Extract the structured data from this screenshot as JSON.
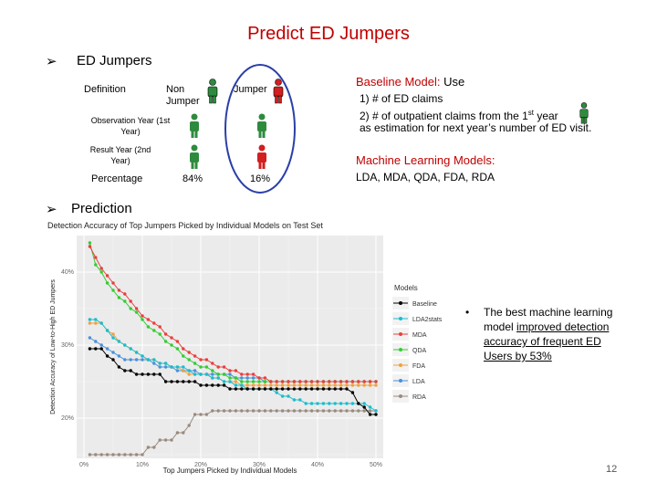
{
  "slide": {
    "title": "Predict ED Jumpers",
    "page_number": "12"
  },
  "ed_section": {
    "heading": "ED Jumpers",
    "table": {
      "row_definition": "Definition",
      "col_non_jumper": "Non Jumper",
      "col_jumper": "Jumper",
      "row_observation": "Observation Year (1st Year)",
      "row_result": "Result Year (2nd Year)",
      "row_percentage": "Percentage",
      "pct_non_jumper": "84%",
      "pct_jumper": "16%"
    }
  },
  "baseline": {
    "label": "Baseline Model:",
    "use": "Use",
    "item1": "1) # of ED claims",
    "item2_pre": "2) # of outpatient claims from the 1",
    "item2_sup": "st",
    "item2_post": " year",
    "item3": "as estimation for next year’s number of ED visit."
  },
  "ml": {
    "label": "Machine Learning Models:",
    "list": "LDA, MDA, QDA, FDA, RDA"
  },
  "prediction": {
    "heading": "Prediction"
  },
  "callout": {
    "text1": "The best machine learning model ",
    "text2": "improved detection accuracy of frequent ED Users by 53%"
  },
  "colors": {
    "accent_red": "#c00000",
    "person_green": "#2e8b3e",
    "person_red": "#d21f1f",
    "circle_blue": "#2b3fa8"
  },
  "chart_data": {
    "type": "line",
    "title": "Detection Accuracy of Top Jumpers Picked by Individual Models on Test Set",
    "xlabel": "Top Jumpers Picked by Individual Models",
    "ylabel": "Detection Accuracy of Low-to-High ED Jumpers",
    "x_ticks": [
      "0%",
      "10%",
      "20%",
      "30%",
      "40%",
      "50%"
    ],
    "y_ticks": [
      "20%",
      "30%",
      "40%"
    ],
    "xlim": [
      0,
      50
    ],
    "ylim": [
      14.5,
      45
    ],
    "legend_title": "Models",
    "legend_position": "right",
    "x": [
      1,
      2,
      3,
      4,
      5,
      6,
      7,
      8,
      9,
      10,
      11,
      12,
      13,
      14,
      15,
      16,
      17,
      18,
      19,
      20,
      21,
      22,
      23,
      24,
      25,
      26,
      27,
      28,
      29,
      30,
      31,
      32,
      33,
      34,
      35,
      36,
      37,
      38,
      39,
      40,
      41,
      42,
      43,
      44,
      45,
      46,
      47,
      48,
      49,
      50
    ],
    "series": [
      {
        "name": "Baseline",
        "color": "#000000",
        "values": [
          29.5,
          29.5,
          29.5,
          28.5,
          28,
          27,
          26.5,
          26.5,
          26,
          26,
          26,
          26,
          26,
          25,
          25,
          25,
          25,
          25,
          25,
          24.5,
          24.5,
          24.5,
          24.5,
          24.5,
          24,
          24,
          24,
          24,
          24,
          24,
          24,
          24,
          24,
          24,
          24,
          24,
          24,
          24,
          24,
          24,
          24,
          24,
          24,
          24,
          24,
          23.5,
          22,
          21.5,
          20.5,
          20.5
        ]
      },
      {
        "name": "LDA2stats",
        "color": "#17becf",
        "values": [
          33.5,
          33.5,
          33,
          32,
          31,
          30.5,
          30,
          29.5,
          29,
          28.5,
          28,
          28,
          27.5,
          27.5,
          27,
          27,
          27,
          26.5,
          26,
          26,
          26,
          25.5,
          25.5,
          25,
          25,
          24.5,
          24.5,
          24,
          24,
          24,
          24,
          24,
          23.5,
          23,
          23,
          22.5,
          22.5,
          22,
          22,
          22,
          22,
          22,
          22,
          22,
          22,
          22,
          22,
          22,
          21.5,
          21
        ]
      },
      {
        "name": "MDA",
        "color": "#e8403d",
        "values": [
          43.5,
          42,
          40.5,
          39.5,
          38.5,
          37.5,
          37,
          36,
          35,
          34,
          33.5,
          33,
          32.5,
          31.5,
          31,
          30.5,
          29.5,
          29,
          28.5,
          28,
          28,
          27.5,
          27,
          27,
          26.5,
          26.5,
          26,
          26,
          26,
          25.5,
          25.5,
          25,
          25,
          25,
          25,
          25,
          25,
          25,
          25,
          25,
          25,
          25,
          25,
          25,
          25,
          25,
          25,
          25,
          25,
          25
        ]
      },
      {
        "name": "QDA",
        "color": "#33cc33",
        "values": [
          44,
          41,
          40,
          38.5,
          37.5,
          36.5,
          36,
          35,
          34.5,
          33.5,
          32.5,
          32,
          31.5,
          30.5,
          30,
          29.5,
          28.5,
          28,
          27.5,
          27,
          27,
          26.5,
          26,
          26,
          25.5,
          25.5,
          25,
          25,
          25,
          25,
          25,
          25,
          25,
          25,
          25,
          25,
          25,
          25,
          25,
          25,
          25,
          25,
          25,
          25,
          25,
          25,
          25,
          25,
          25,
          25
        ]
      },
      {
        "name": "FDA",
        "color": "#f0a040",
        "values": [
          33,
          33,
          33,
          32,
          31.5,
          30.5,
          30,
          29.5,
          29,
          28.5,
          28,
          28,
          27.5,
          27.5,
          27,
          27,
          26.5,
          26,
          26,
          26,
          26,
          25.5,
          25.5,
          25,
          25,
          25,
          24.5,
          24.5,
          24.5,
          24.5,
          24.5,
          24.5,
          24.5,
          24.5,
          24.5,
          24.5,
          24.5,
          24.5,
          24.5,
          24.5,
          24.5,
          24.5,
          24.5,
          24.5,
          24.5,
          24.5,
          24.5,
          24.5,
          24.5,
          24.5
        ]
      },
      {
        "name": "LDA",
        "color": "#4a90d9",
        "values": [
          31,
          30.5,
          30,
          29.5,
          29,
          28.5,
          28,
          28,
          28,
          28,
          28,
          27.5,
          27,
          27,
          27,
          26.5,
          26.5,
          26.5,
          26.5,
          26,
          26,
          26,
          26,
          26,
          26,
          25.5,
          25.5,
          25.5,
          25.5,
          25.5,
          25,
          25,
          25,
          25,
          25,
          25,
          25,
          25,
          25,
          25,
          25,
          25,
          25,
          25,
          25,
          25,
          25,
          25,
          25,
          25
        ]
      },
      {
        "name": "RDA",
        "color": "#9a8a7e",
        "values": [
          15,
          15,
          15,
          15,
          15,
          15,
          15,
          15,
          15,
          15,
          16,
          16,
          17,
          17,
          17,
          18,
          18,
          19,
          20.5,
          20.5,
          20.5,
          21,
          21,
          21,
          21,
          21,
          21,
          21,
          21,
          21,
          21,
          21,
          21,
          21,
          21,
          21,
          21,
          21,
          21,
          21,
          21,
          21,
          21,
          21,
          21,
          21,
          21,
          21,
          21,
          21
        ]
      }
    ]
  }
}
